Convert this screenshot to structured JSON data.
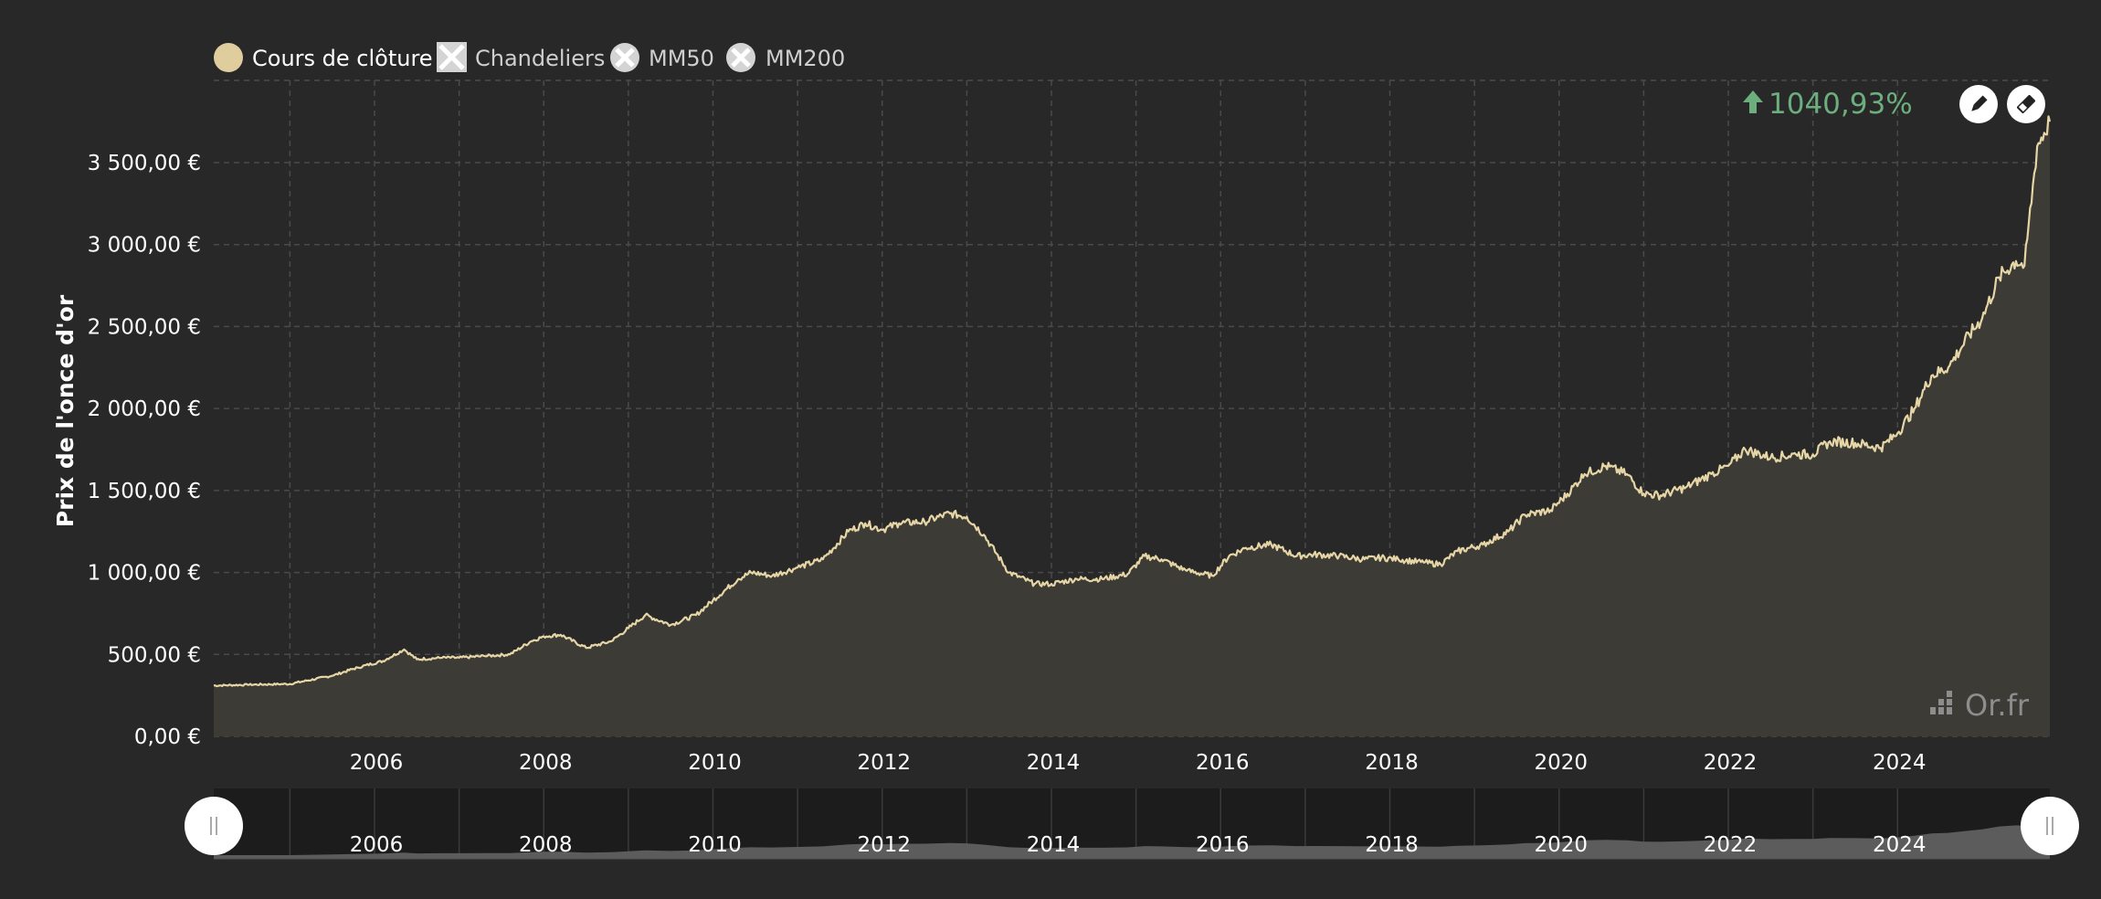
{
  "legend": [
    {
      "label": "Cours de clôture",
      "active": true,
      "icon": "filled-circle-icon",
      "color": "#e0cd9e"
    },
    {
      "label": "Chandeliers",
      "active": false,
      "icon": "crossed-square-icon",
      "color": "#d9d9d9"
    },
    {
      "label": "MM50",
      "active": false,
      "icon": "crossed-circle-icon",
      "color": "#d9d9d9"
    },
    {
      "label": "MM200",
      "active": false,
      "icon": "crossed-circle-icon",
      "color": "#d9d9d9"
    }
  ],
  "performance": {
    "text": "1040,93%",
    "direction": "up",
    "color": "#6cae7d"
  },
  "brand": {
    "text": "Or.fr"
  },
  "tools": [
    {
      "name": "pencil-icon"
    },
    {
      "name": "eraser-icon"
    }
  ],
  "colors": {
    "background": "#282828",
    "line": "#e6d5a5",
    "area": "#3d3b36",
    "grid": "#4a4a4a",
    "navigator_bg": "#1c1c1c",
    "navigator_area": "#5c5c5c"
  },
  "chart_data": {
    "type": "area",
    "title": "",
    "xlabel": "",
    "ylabel": "Prix de l'once d'or",
    "xlim": [
      2004.1,
      2025.8
    ],
    "ylim": [
      0,
      3500
    ],
    "y_ticks": [
      0,
      500,
      1000,
      1500,
      2000,
      2500,
      3000,
      3500
    ],
    "y_tick_labels": [
      "0,00 €",
      "500,00 €",
      "1 000,00 €",
      "1 500,00 €",
      "2 000,00 €",
      "2 500,00 €",
      "3 000,00 €",
      "3 500,00 €"
    ],
    "x_ticks": [
      2006,
      2008,
      2010,
      2012,
      2014,
      2016,
      2018,
      2020,
      2022,
      2024
    ],
    "x_tick_labels": [
      "2006",
      "2008",
      "2010",
      "2012",
      "2014",
      "2016",
      "2018",
      "2020",
      "2022",
      "2024"
    ],
    "grid": true,
    "legend_position": "top-left",
    "series": [
      {
        "name": "Cours de clôture",
        "x": [
          2004.1,
          2004.5,
          2005.0,
          2005.5,
          2005.8,
          2006.1,
          2006.35,
          2006.5,
          2006.8,
          2007.0,
          2007.3,
          2007.6,
          2007.85,
          2008.0,
          2008.2,
          2008.5,
          2008.8,
          2009.0,
          2009.2,
          2009.5,
          2009.8,
          2010.0,
          2010.3,
          2010.45,
          2010.7,
          2011.0,
          2011.3,
          2011.6,
          2011.8,
          2012.0,
          2012.2,
          2012.5,
          2012.8,
          2013.0,
          2013.2,
          2013.5,
          2013.8,
          2014.0,
          2014.3,
          2014.6,
          2014.9,
          2015.1,
          2015.3,
          2015.6,
          2015.9,
          2016.1,
          2016.3,
          2016.6,
          2016.9,
          2017.1,
          2017.4,
          2017.7,
          2017.9,
          2018.1,
          2018.4,
          2018.6,
          2018.8,
          2019.1,
          2019.4,
          2019.6,
          2019.9,
          2020.1,
          2020.3,
          2020.55,
          2020.8,
          2021.0,
          2021.2,
          2021.5,
          2021.8,
          2022.0,
          2022.2,
          2022.5,
          2022.8,
          2023.0,
          2023.2,
          2023.5,
          2023.8,
          2024.0,
          2024.2,
          2024.4,
          2024.6,
          2024.85,
          2025.0,
          2025.2,
          2025.4,
          2025.5,
          2025.65,
          2025.8
        ],
        "values": [
          310,
          315,
          320,
          370,
          420,
          460,
          530,
          470,
          480,
          480,
          490,
          500,
          580,
          610,
          620,
          540,
          580,
          660,
          740,
          680,
          740,
          830,
          960,
          1000,
          980,
          1030,
          1080,
          1250,
          1300,
          1260,
          1300,
          1310,
          1360,
          1340,
          1230,
          1000,
          930,
          930,
          960,
          960,
          990,
          1100,
          1080,
          1010,
          980,
          1100,
          1150,
          1170,
          1100,
          1110,
          1100,
          1080,
          1090,
          1080,
          1060,
          1050,
          1130,
          1170,
          1250,
          1350,
          1380,
          1480,
          1600,
          1650,
          1600,
          1480,
          1470,
          1520,
          1600,
          1650,
          1750,
          1700,
          1720,
          1720,
          1800,
          1790,
          1760,
          1850,
          2000,
          2200,
          2250,
          2450,
          2550,
          2800,
          2900,
          2870,
          3600,
          3750
        ]
      }
    ]
  }
}
